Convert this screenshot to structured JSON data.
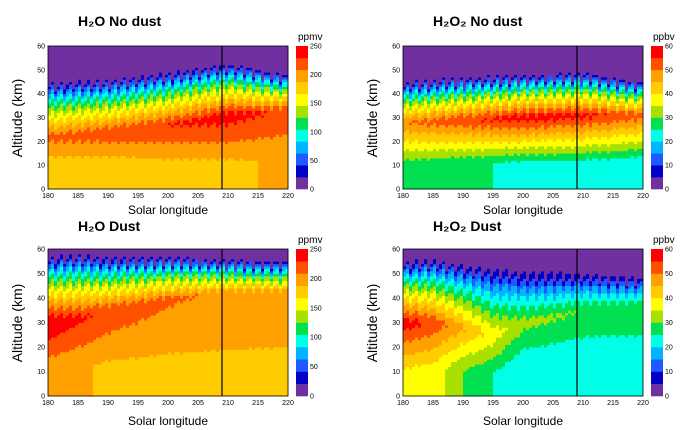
{
  "chart_data": [
    {
      "type": "heatmap",
      "title": "H₂O No dust",
      "xlabel": "Solar longitude",
      "ylabel": "Altitude (km)",
      "xlim": [
        180,
        220
      ],
      "ylim": [
        0,
        60
      ],
      "xticks": [
        "180",
        "185",
        "190",
        "195",
        "200",
        "205",
        "210",
        "215",
        "220"
      ],
      "yticks": [
        "0",
        "10",
        "20",
        "30",
        "40",
        "50",
        "60"
      ],
      "colorbar": {
        "unit": "ppmv",
        "min": 0,
        "max": 250,
        "ticks": [
          "0",
          "50",
          "100",
          "150",
          "200",
          "250"
        ]
      },
      "marker_line_x": 209,
      "profile_description": "peak band red ~220 ppmv near 20-30 km, rising in altitude with Ls; orange 180-200 ppmv below; purple above ~45 km",
      "profile": {
        "x": [
          180,
          190,
          200,
          210,
          220
        ],
        "max_altitude": [
          44,
          45,
          48,
          52,
          47
        ],
        "peak_altitude": [
          22,
          24,
          27,
          31,
          33
        ],
        "peak_value": [
          215,
          222,
          230,
          240,
          225
        ],
        "base_value": [
          170,
          172,
          180,
          185,
          190
        ]
      }
    },
    {
      "type": "heatmap",
      "title": "H₂O₂ No dust",
      "xlabel": "Solar longitude",
      "ylabel": "Altitude (km)",
      "xlim": [
        180,
        220
      ],
      "ylim": [
        0,
        60
      ],
      "xticks": [
        "180",
        "185",
        "190",
        "195",
        "200",
        "205",
        "210",
        "215",
        "220"
      ],
      "yticks": [
        "0",
        "10",
        "20",
        "30",
        "40",
        "50",
        "60"
      ],
      "colorbar": {
        "unit": "ppbv",
        "min": 0,
        "max": 60,
        "ticks": [
          "0",
          "10",
          "20",
          "30",
          "40",
          "50",
          "60"
        ]
      },
      "marker_line_x": 209,
      "profile": {
        "x": [
          180,
          190,
          200,
          210,
          220
        ],
        "max_altitude": [
          44,
          46,
          47,
          48,
          44
        ],
        "peak_altitude": [
          28,
          29,
          30,
          31,
          31
        ],
        "peak_value": [
          50,
          54,
          58,
          57,
          52
        ],
        "base_value": [
          28,
          26,
          24,
          24,
          22
        ]
      }
    },
    {
      "type": "heatmap",
      "title": "H₂O Dust",
      "xlabel": "Solar longitude",
      "ylabel": "Altitude (km)",
      "xlim": [
        180,
        220
      ],
      "ylim": [
        0,
        60
      ],
      "xticks": [
        "180",
        "185",
        "190",
        "195",
        "200",
        "205",
        "210",
        "215",
        "220"
      ],
      "yticks": [
        "0",
        "10",
        "20",
        "30",
        "40",
        "50",
        "60"
      ],
      "colorbar": {
        "unit": "ppmv",
        "min": 0,
        "max": 250,
        "ticks": [
          "0",
          "50",
          "100",
          "150",
          "200",
          "250"
        ]
      },
      "marker_line_x": 209,
      "profile": {
        "x": [
          180,
          185,
          190,
          200,
          210,
          220
        ],
        "max_altitude": [
          56,
          57,
          56,
          56,
          55,
          54
        ],
        "peak_altitude": [
          30,
          32,
          35,
          40,
          42,
          42
        ],
        "peak_value": [
          250,
          235,
          225,
          212,
          205,
          200
        ],
        "base_value": [
          195,
          190,
          185,
          185,
          185,
          185
        ]
      }
    },
    {
      "type": "heatmap",
      "title": "H₂O₂ Dust",
      "xlabel": "Solar longitude",
      "ylabel": "Altitude (km)",
      "xlim": [
        180,
        220
      ],
      "ylim": [
        0,
        60
      ],
      "xticks": [
        "180",
        "185",
        "190",
        "195",
        "200",
        "205",
        "210",
        "215",
        "220"
      ],
      "yticks": [
        "0",
        "10",
        "20",
        "30",
        "40",
        "50",
        "60"
      ],
      "colorbar": {
        "unit": "ppbv",
        "min": 0,
        "max": 60,
        "ticks": [
          "0",
          "10",
          "20",
          "30",
          "40",
          "50",
          "60"
        ]
      },
      "marker_line_x": 209,
      "profile": {
        "x": [
          180,
          185,
          190,
          195,
          200,
          210,
          220
        ],
        "max_altitude": [
          54,
          55,
          53,
          52,
          51,
          50,
          48
        ],
        "peak_altitude": [
          30,
          30,
          28,
          25,
          30,
          35,
          36
        ],
        "peak_value": [
          58,
          54,
          46,
          38,
          32,
          30,
          30
        ],
        "base_value": [
          40,
          38,
          30,
          25,
          20,
          20,
          20
        ]
      }
    }
  ]
}
